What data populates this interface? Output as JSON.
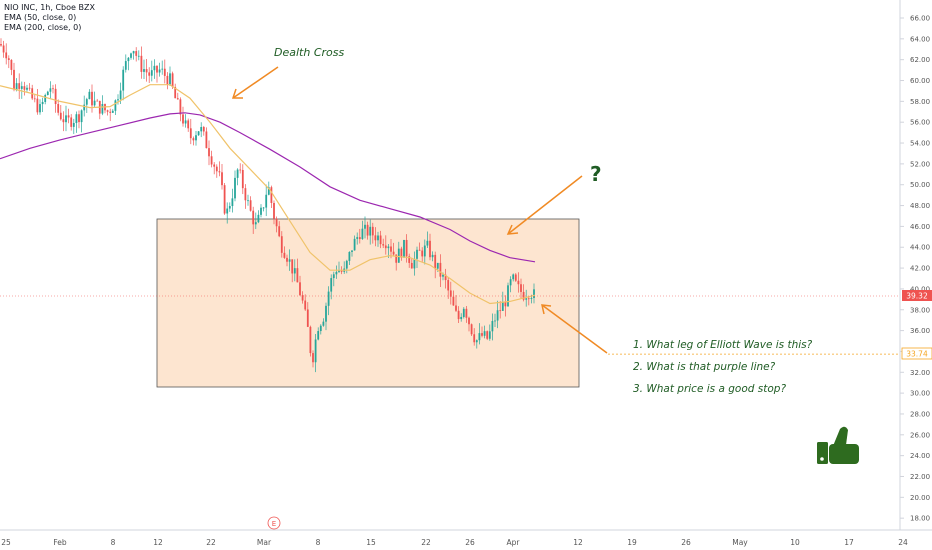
{
  "header": {
    "symbol_line": "NIO INC, 1h, Cboe BZX",
    "ema50_line": "EMA (50, close, 0)",
    "ema200_line": "EMA (200, close, 0)"
  },
  "annotations": {
    "death_cross": "Dealth Cross",
    "question_mark": "?",
    "questions": [
      "1.  What leg of Elliott Wave is this?",
      "2.  What is that purple line?",
      "3.  What price is a good stop?"
    ],
    "thumbs_up_icon": "thumbs-up-icon",
    "event_marker": "E"
  },
  "colors": {
    "up": "#26a69a",
    "down": "#ef5350",
    "ema50": "#f0c36a",
    "ema200": "#9c27b0",
    "box_fill": "#fde5d0",
    "arrow": "#f08a24",
    "note_text": "#1f5c24",
    "price_label": "#ef5350",
    "level_label": "#f5a623"
  },
  "chart_data": {
    "type": "candlestick",
    "title": "NIO INC, 1h, Cboe BZX",
    "x_ticks": [
      "25",
      "Feb",
      "8",
      "12",
      "22",
      "Mar",
      "8",
      "15",
      "22",
      "26",
      "Apr",
      "12",
      "19",
      "26",
      "May",
      "10",
      "17",
      "24"
    ],
    "y_ticks": [
      "66.00",
      "64.00",
      "62.00",
      "60.00",
      "58.00",
      "56.00",
      "54.00",
      "52.00",
      "50.00",
      "48.00",
      "46.00",
      "44.00",
      "42.00",
      "40.00",
      "38.00",
      "36.00",
      "34.00",
      "32.00",
      "30.00",
      "28.00",
      "26.00",
      "24.00",
      "22.00",
      "20.00",
      "18.00"
    ],
    "ylim": [
      16.8,
      66.8
    ],
    "current_price_label": "39.32",
    "current_price": 39.32,
    "level_label": "33.74",
    "level": 33.74,
    "price_path": [
      {
        "x": 0,
        "y": 63.5
      },
      {
        "x": 8,
        "y": 62.5
      },
      {
        "x": 14,
        "y": 59.5
      },
      {
        "x": 22,
        "y": 60.0
      },
      {
        "x": 30,
        "y": 58.5
      },
      {
        "x": 40,
        "y": 57.2
      },
      {
        "x": 50,
        "y": 59.5
      },
      {
        "x": 58,
        "y": 57.0
      },
      {
        "x": 66,
        "y": 56.0
      },
      {
        "x": 78,
        "y": 56.5
      },
      {
        "x": 88,
        "y": 58.5
      },
      {
        "x": 98,
        "y": 57.5
      },
      {
        "x": 108,
        "y": 57.0
      },
      {
        "x": 116,
        "y": 58.0
      },
      {
        "x": 124,
        "y": 61.0
      },
      {
        "x": 132,
        "y": 63.5
      },
      {
        "x": 140,
        "y": 61.5
      },
      {
        "x": 150,
        "y": 60.5
      },
      {
        "x": 160,
        "y": 61.0
      },
      {
        "x": 170,
        "y": 60.0
      },
      {
        "x": 176,
        "y": 58.0
      },
      {
        "x": 182,
        "y": 56.5
      },
      {
        "x": 190,
        "y": 54.5
      },
      {
        "x": 200,
        "y": 55.5
      },
      {
        "x": 208,
        "y": 53.5
      },
      {
        "x": 214,
        "y": 52.0
      },
      {
        "x": 220,
        "y": 50.5
      },
      {
        "x": 226,
        "y": 47.0
      },
      {
        "x": 232,
        "y": 49.0
      },
      {
        "x": 238,
        "y": 51.5
      },
      {
        "x": 244,
        "y": 49.5
      },
      {
        "x": 250,
        "y": 47.5
      },
      {
        "x": 256,
        "y": 46.0
      },
      {
        "x": 262,
        "y": 47.5
      },
      {
        "x": 268,
        "y": 50.0
      },
      {
        "x": 274,
        "y": 47.0
      },
      {
        "x": 280,
        "y": 44.5
      },
      {
        "x": 288,
        "y": 43.0
      },
      {
        "x": 296,
        "y": 41.0
      },
      {
        "x": 302,
        "y": 39.0
      },
      {
        "x": 308,
        "y": 36.0
      },
      {
        "x": 312,
        "y": 33.0
      },
      {
        "x": 318,
        "y": 36.5
      },
      {
        "x": 324,
        "y": 37.5
      },
      {
        "x": 330,
        "y": 40.5
      },
      {
        "x": 336,
        "y": 42.0
      },
      {
        "x": 344,
        "y": 41.5
      },
      {
        "x": 352,
        "y": 44.0
      },
      {
        "x": 360,
        "y": 45.5
      },
      {
        "x": 368,
        "y": 45.5
      },
      {
        "x": 378,
        "y": 45.0
      },
      {
        "x": 388,
        "y": 44.5
      },
      {
        "x": 396,
        "y": 43.0
      },
      {
        "x": 404,
        "y": 44.0
      },
      {
        "x": 412,
        "y": 42.5
      },
      {
        "x": 420,
        "y": 43.5
      },
      {
        "x": 428,
        "y": 44.0
      },
      {
        "x": 434,
        "y": 42.5
      },
      {
        "x": 440,
        "y": 41.5
      },
      {
        "x": 446,
        "y": 40.5
      },
      {
        "x": 452,
        "y": 38.5
      },
      {
        "x": 458,
        "y": 37.0
      },
      {
        "x": 464,
        "y": 38.5
      },
      {
        "x": 470,
        "y": 36.5
      },
      {
        "x": 476,
        "y": 35.0
      },
      {
        "x": 482,
        "y": 35.5
      },
      {
        "x": 488,
        "y": 35.2
      },
      {
        "x": 494,
        "y": 37.0
      },
      {
        "x": 500,
        "y": 38.0
      },
      {
        "x": 506,
        "y": 39.0
      },
      {
        "x": 512,
        "y": 41.0
      },
      {
        "x": 518,
        "y": 40.0
      },
      {
        "x": 524,
        "y": 39.5
      },
      {
        "x": 530,
        "y": 39.8
      },
      {
        "x": 535,
        "y": 39.3
      }
    ],
    "ema50_path": [
      {
        "x": 0,
        "y": 59.5
      },
      {
        "x": 30,
        "y": 58.8
      },
      {
        "x": 60,
        "y": 58.0
      },
      {
        "x": 90,
        "y": 57.4
      },
      {
        "x": 110,
        "y": 57.5
      },
      {
        "x": 130,
        "y": 58.6
      },
      {
        "x": 150,
        "y": 59.6
      },
      {
        "x": 170,
        "y": 59.6
      },
      {
        "x": 190,
        "y": 58.3
      },
      {
        "x": 210,
        "y": 56.0
      },
      {
        "x": 230,
        "y": 53.5
      },
      {
        "x": 250,
        "y": 51.5
      },
      {
        "x": 270,
        "y": 49.5
      },
      {
        "x": 290,
        "y": 46.5
      },
      {
        "x": 310,
        "y": 43.5
      },
      {
        "x": 330,
        "y": 41.8
      },
      {
        "x": 350,
        "y": 41.8
      },
      {
        "x": 370,
        "y": 42.8
      },
      {
        "x": 390,
        "y": 43.2
      },
      {
        "x": 410,
        "y": 43.0
      },
      {
        "x": 430,
        "y": 42.3
      },
      {
        "x": 450,
        "y": 41.0
      },
      {
        "x": 470,
        "y": 39.6
      },
      {
        "x": 490,
        "y": 38.6
      },
      {
        "x": 510,
        "y": 38.8
      },
      {
        "x": 535,
        "y": 39.4
      }
    ],
    "ema200_path": [
      {
        "x": 0,
        "y": 52.5
      },
      {
        "x": 30,
        "y": 53.5
      },
      {
        "x": 60,
        "y": 54.3
      },
      {
        "x": 90,
        "y": 55.0
      },
      {
        "x": 120,
        "y": 55.7
      },
      {
        "x": 150,
        "y": 56.4
      },
      {
        "x": 170,
        "y": 56.8
      },
      {
        "x": 185,
        "y": 56.9
      },
      {
        "x": 200,
        "y": 56.7
      },
      {
        "x": 220,
        "y": 56.0
      },
      {
        "x": 240,
        "y": 55.0
      },
      {
        "x": 270,
        "y": 53.4
      },
      {
        "x": 300,
        "y": 51.7
      },
      {
        "x": 330,
        "y": 49.8
      },
      {
        "x": 360,
        "y": 48.5
      },
      {
        "x": 390,
        "y": 47.7
      },
      {
        "x": 420,
        "y": 46.9
      },
      {
        "x": 450,
        "y": 45.7
      },
      {
        "x": 470,
        "y": 44.6
      },
      {
        "x": 490,
        "y": 43.7
      },
      {
        "x": 510,
        "y": 43.0
      },
      {
        "x": 535,
        "y": 42.6
      }
    ]
  }
}
